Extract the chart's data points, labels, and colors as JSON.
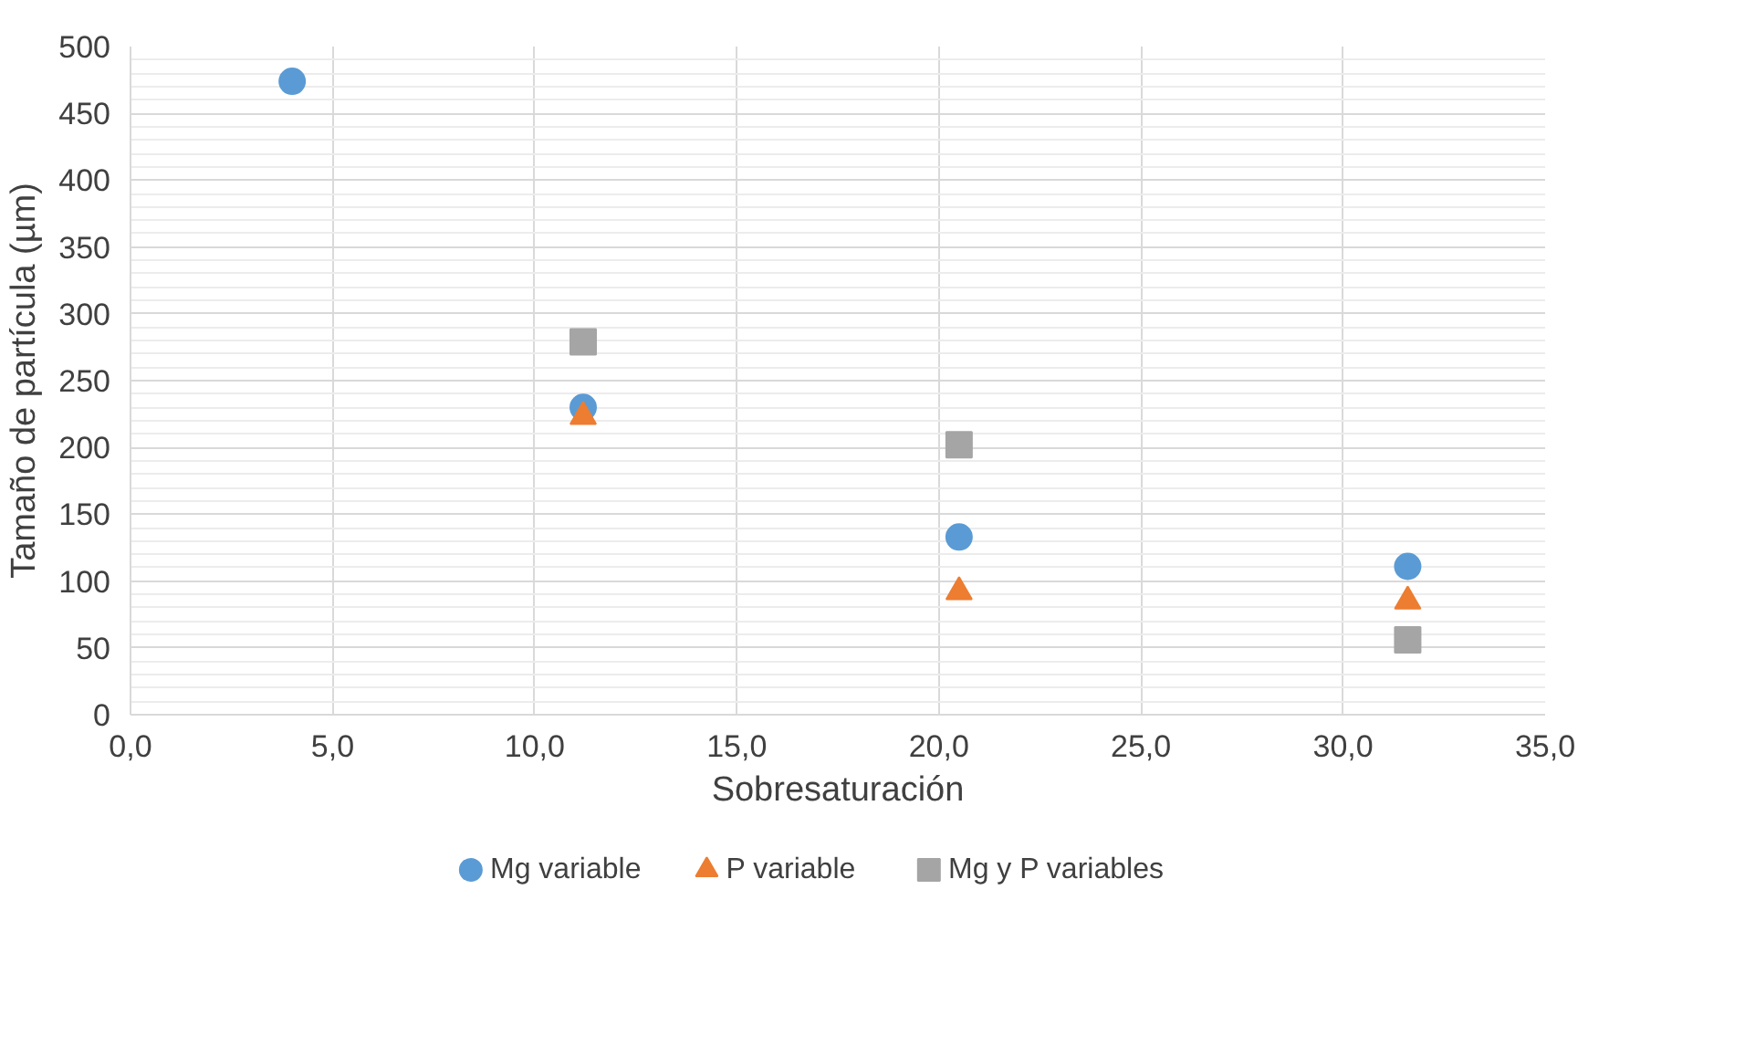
{
  "chart_data": {
    "type": "scatter",
    "xlabel": "Sobresaturación",
    "ylabel": "Tamaño de partícula (µm)",
    "xlim": [
      0,
      35
    ],
    "xticks": [
      {
        "value": 0,
        "label": "0,0"
      },
      {
        "value": 5,
        "label": "5,0"
      },
      {
        "value": 10,
        "label": "10,0"
      },
      {
        "value": 15,
        "label": "15,0"
      },
      {
        "value": 20,
        "label": "20,0"
      },
      {
        "value": 25,
        "label": "25,0"
      },
      {
        "value": 30,
        "label": "30,0"
      },
      {
        "value": 35,
        "label": "35,0"
      }
    ],
    "ylim": [
      0,
      500
    ],
    "yticks": [
      0,
      50,
      100,
      150,
      200,
      250,
      300,
      350,
      400,
      450,
      500
    ],
    "grid": true,
    "legend": "bottom",
    "series": [
      {
        "name": "Mg variable",
        "color": "#5b9bd5",
        "marker": "circle",
        "x": [
          4.0,
          11.2,
          20.5,
          31.6
        ],
        "values": [
          474,
          230,
          133,
          111
        ]
      },
      {
        "name": "P variable",
        "color": "#ed7d31",
        "marker": "triangle",
        "x": [
          11.2,
          20.5,
          31.6
        ],
        "values": [
          223,
          92,
          85
        ]
      },
      {
        "name": "Mg y P variables",
        "color": "#a5a5a5",
        "marker": "square",
        "x": [
          11.2,
          20.5,
          31.6
        ],
        "values": [
          279,
          202,
          56
        ]
      }
    ]
  }
}
